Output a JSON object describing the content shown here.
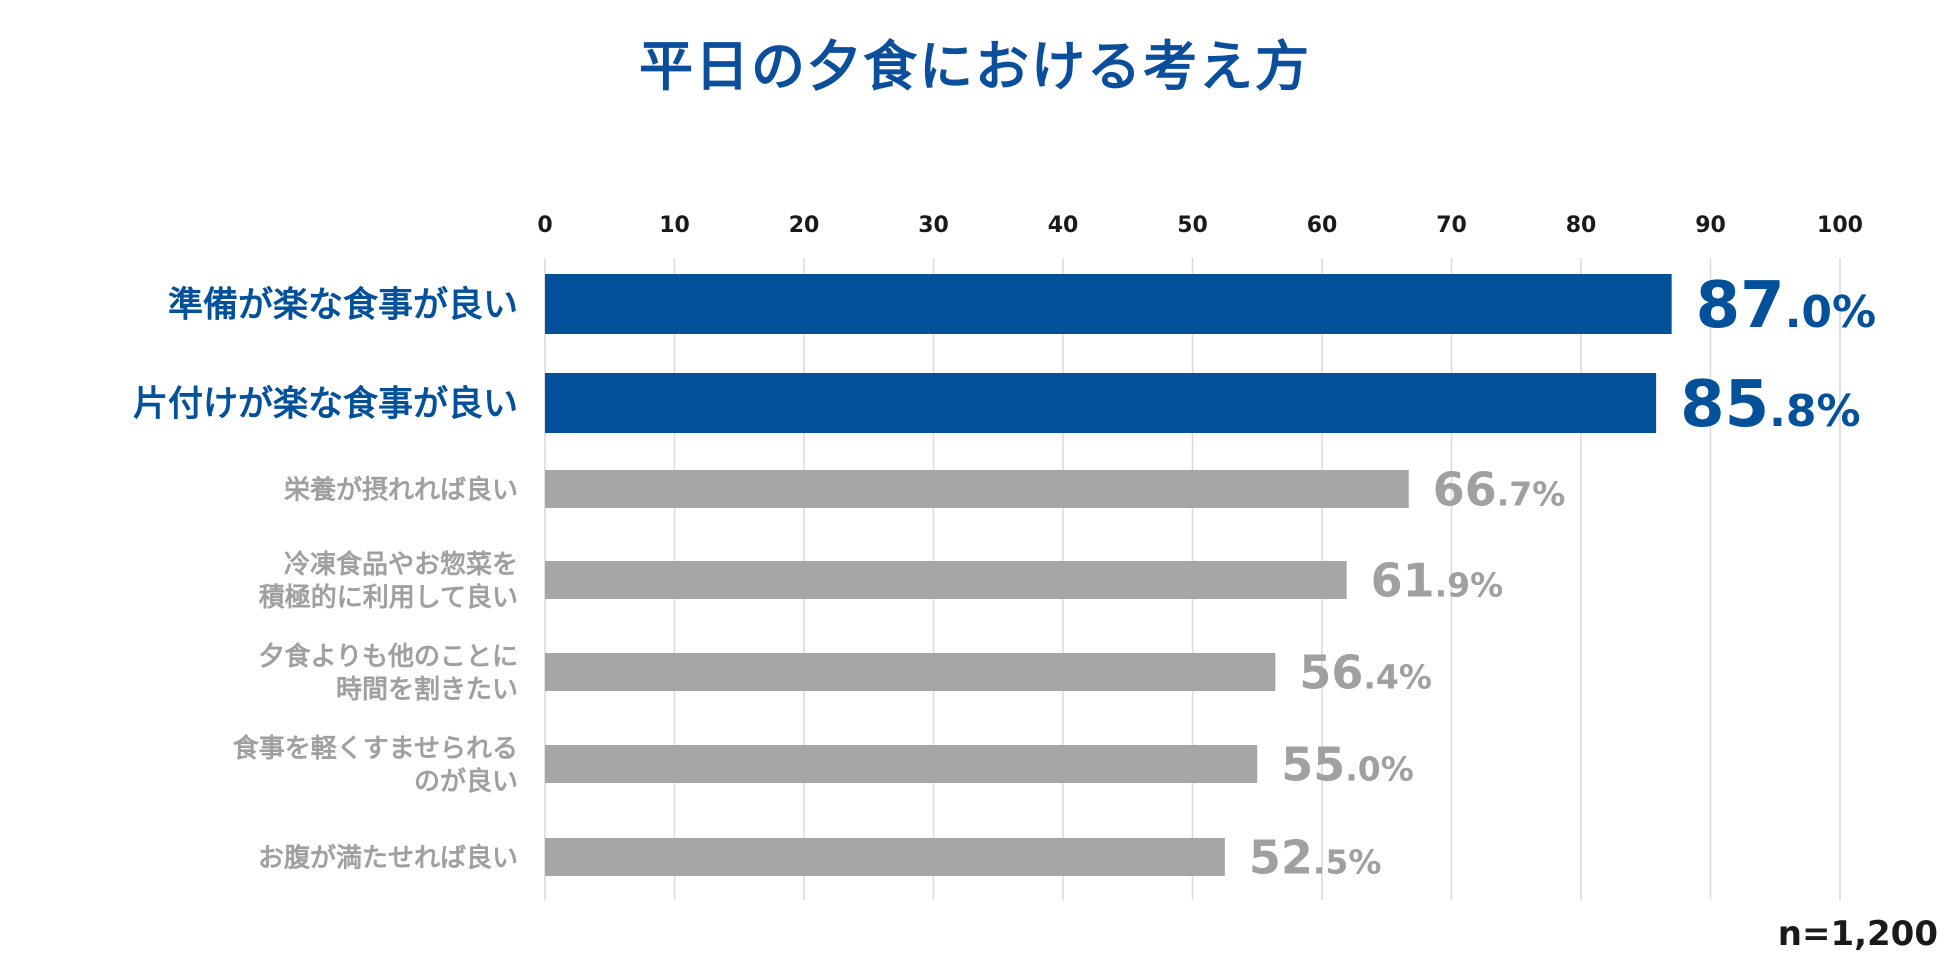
{
  "chart_data": {
    "type": "bar",
    "orientation": "horizontal",
    "title": "平日の夕食における考え方",
    "xlabel": "",
    "ylabel": "",
    "xlim": [
      0,
      100
    ],
    "ticks": [
      0,
      10,
      20,
      30,
      40,
      50,
      60,
      70,
      80,
      90,
      100
    ],
    "grid": true,
    "note": "n=1,200",
    "categories": [
      {
        "lines": [
          "準備が楽な食事が良い"
        ],
        "value": 87.0,
        "int": "87",
        "dec": ".0%",
        "highlight": true
      },
      {
        "lines": [
          "片付けが楽な食事が良い"
        ],
        "value": 85.8,
        "int": "85",
        "dec": ".8%",
        "highlight": true
      },
      {
        "lines": [
          "栄養が摂れれば良い"
        ],
        "value": 66.7,
        "int": "66",
        "dec": ".7%",
        "highlight": false
      },
      {
        "lines": [
          "冷凍食品やお惣菜を",
          "積極的に利用して良い"
        ],
        "value": 61.9,
        "int": "61",
        "dec": ".9%",
        "highlight": false
      },
      {
        "lines": [
          "夕食よりも他のことに",
          "時間を割きたい"
        ],
        "value": 56.4,
        "int": "56",
        "dec": ".4%",
        "highlight": false
      },
      {
        "lines": [
          "食事を軽くすませられる",
          "のが良い"
        ],
        "value": 55.0,
        "int": "55",
        "dec": ".0%",
        "highlight": false
      },
      {
        "lines": [
          "お腹が満たせれば良い"
        ],
        "value": 52.5,
        "int": "52",
        "dec": ".5%",
        "highlight": false
      }
    ]
  },
  "colors": {
    "title": "#0b4f9c",
    "highlight": "#03509b",
    "muted": "#a6a6a6",
    "muted_text": "#a0a0a0",
    "grid": "#d9d9d9",
    "tick": "#1a1a1a"
  }
}
